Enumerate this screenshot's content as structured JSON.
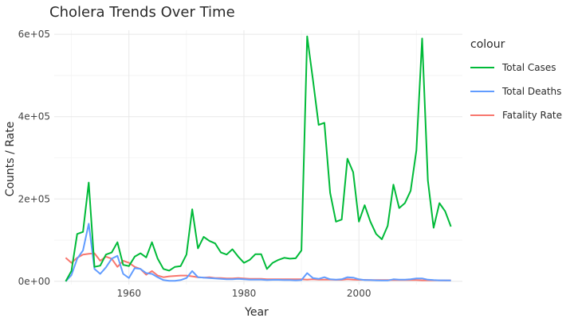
{
  "chart_data": {
    "type": "line",
    "title": "Cholera Trends Over Time",
    "xlabel": "Year",
    "ylabel": "Counts / Rate",
    "legend_title": "colour",
    "legend_position": "right",
    "grid": true,
    "xlim": [
      1947,
      2018
    ],
    "ylim": [
      -8000,
      610000
    ],
    "x_ticks": [
      1960,
      1980,
      2000
    ],
    "x_tick_labels": [
      "1960",
      "1980",
      "2000"
    ],
    "y_ticks": [
      0,
      200000,
      400000,
      600000
    ],
    "y_tick_labels": [
      "0e+00",
      "2e+05",
      "4e+05",
      "6e+05"
    ],
    "series": [
      {
        "name": "Total Cases",
        "color": "#00ba38",
        "x": [
          1949,
          1950,
          1951,
          1952,
          1953,
          1954,
          1955,
          1956,
          1957,
          1958,
          1959,
          1960,
          1961,
          1962,
          1963,
          1964,
          1965,
          1966,
          1967,
          1968,
          1969,
          1970,
          1971,
          1972,
          1973,
          1974,
          1975,
          1976,
          1977,
          1978,
          1979,
          1980,
          1981,
          1982,
          1983,
          1984,
          1985,
          1986,
          1987,
          1988,
          1989,
          1990,
          1991,
          1992,
          1993,
          1994,
          1995,
          1996,
          1997,
          1998,
          1999,
          2000,
          2001,
          2002,
          2003,
          2004,
          2005,
          2006,
          2007,
          2008,
          2009,
          2010,
          2011,
          2012,
          2013,
          2014,
          2015,
          2016
        ],
        "y": [
          0,
          25000,
          115000,
          120000,
          240000,
          35000,
          38000,
          65000,
          70000,
          95000,
          40000,
          37000,
          60000,
          68000,
          58000,
          95000,
          55000,
          30000,
          26000,
          35000,
          37000,
          65000,
          175000,
          80000,
          108000,
          98000,
          92000,
          70000,
          65000,
          78000,
          60000,
          45000,
          52000,
          66000,
          66000,
          30000,
          45000,
          52000,
          57000,
          55000,
          56000,
          75000,
          595000,
          490000,
          380000,
          385000,
          215000,
          145000,
          150000,
          298000,
          265000,
          145000,
          185000,
          145000,
          115000,
          102000,
          135000,
          235000,
          178000,
          190000,
          220000,
          318000,
          590000,
          245000,
          130000,
          190000,
          170000,
          133000
        ]
      },
      {
        "name": "Total Deaths",
        "color": "#619cff",
        "x": [
          1949,
          1950,
          1951,
          1952,
          1953,
          1954,
          1955,
          1956,
          1957,
          1958,
          1959,
          1960,
          1961,
          1962,
          1963,
          1964,
          1965,
          1966,
          1967,
          1968,
          1969,
          1970,
          1971,
          1972,
          1973,
          1974,
          1975,
          1976,
          1977,
          1978,
          1979,
          1980,
          1981,
          1982,
          1983,
          1984,
          1985,
          1986,
          1987,
          1988,
          1989,
          1990,
          1991,
          1992,
          1993,
          1994,
          1995,
          1996,
          1997,
          1998,
          1999,
          2000,
          2001,
          2002,
          2003,
          2004,
          2005,
          2006,
          2007,
          2008,
          2009,
          2010,
          2011,
          2012,
          2013,
          2014,
          2015,
          2016
        ],
        "y": [
          0,
          15000,
          55000,
          75000,
          140000,
          30000,
          18000,
          34000,
          55000,
          62000,
          18000,
          8000,
          32000,
          30000,
          20000,
          18000,
          10000,
          3000,
          1000,
          1000,
          3000,
          8000,
          25000,
          10000,
          9000,
          8000,
          7000,
          6000,
          5000,
          5000,
          6000,
          5000,
          4000,
          4000,
          4000,
          3000,
          3500,
          3500,
          3000,
          3000,
          2500,
          3000,
          20000,
          8000,
          6000,
          10000,
          5000,
          4000,
          5000,
          10000,
          9000,
          5000,
          3000,
          3000,
          2500,
          2000,
          2000,
          5000,
          4000,
          4000,
          5000,
          7000,
          7000,
          4000,
          3000,
          2500,
          2500,
          2000
        ]
      },
      {
        "name": "Fatality Rate",
        "color": "#f8766d",
        "x": [
          1949,
          1950,
          1951,
          1952,
          1953,
          1954,
          1955,
          1956,
          1957,
          1958,
          1959,
          1960,
          1961,
          1962,
          1963,
          1964,
          1965,
          1966,
          1967,
          1968,
          1969,
          1970,
          1971,
          1972,
          1973,
          1974,
          1975,
          1976,
          1977,
          1978,
          1979,
          1980,
          1981,
          1982,
          1983,
          1984,
          1985,
          1986,
          1987,
          1988,
          1989,
          1990,
          1991,
          1992,
          1993,
          1994,
          1995,
          1996,
          1997,
          1998,
          1999,
          2000,
          2001,
          2002,
          2003,
          2004,
          2005,
          2006,
          2007,
          2008,
          2009,
          2010,
          2011,
          2012,
          2013,
          2014,
          2015,
          2016
        ],
        "y": [
          57000,
          45000,
          57000,
          65000,
          67000,
          68000,
          50000,
          60000,
          55000,
          35000,
          50000,
          45000,
          35000,
          30000,
          16000,
          25000,
          14000,
          10000,
          12000,
          13000,
          14000,
          14000,
          12000,
          10000,
          9000,
          10000,
          8000,
          8000,
          7000,
          7000,
          8000,
          7000,
          6000,
          6000,
          6000,
          5000,
          5000,
          5000,
          5000,
          5000,
          5000,
          5000,
          4000,
          5000,
          4000,
          4000,
          4000,
          3500,
          3500,
          5000,
          4000,
          3500,
          3500,
          3000,
          3000,
          3000,
          3000,
          3000,
          3000,
          3000,
          3000,
          3000,
          2500,
          2500,
          2500,
          2500,
          2000,
          2500
        ]
      }
    ]
  }
}
